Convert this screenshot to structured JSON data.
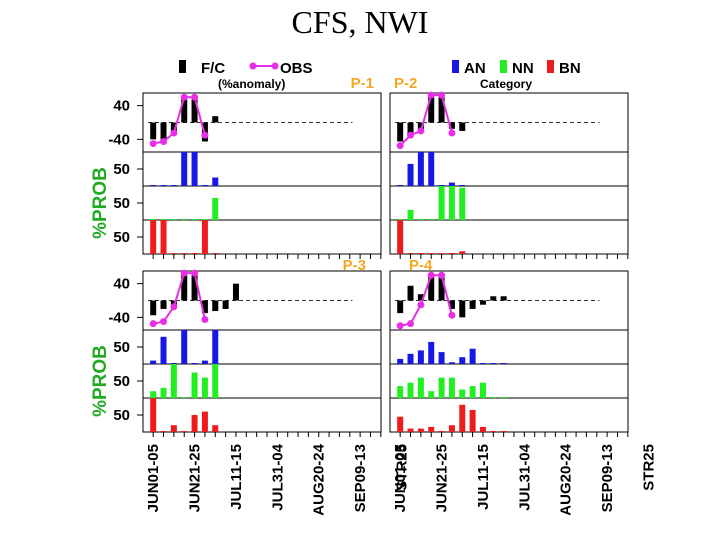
{
  "title": "CFS, NWI",
  "legend": {
    "fc_label": "F/C",
    "obs_label": "OBS",
    "anomaly_note": "(%anomaly)",
    "an_label": "AN",
    "nn_label": "NN",
    "bn_label": "BN",
    "category_note": "Category"
  },
  "colors": {
    "fc": "#000000",
    "obs": "#e62ee6",
    "an": "#1717e6",
    "nn": "#22ee22",
    "bn": "#ee1c1c",
    "panel_label": "#f5a623",
    "prob_axis": "#22aa22"
  },
  "chart_data": {
    "type": "bar",
    "x_tick_labels": [
      "JUN01-05",
      "JUN21-25",
      "JUL11-15",
      "JUL31-04",
      "AUG20-24",
      "SEP09-13",
      "STR25"
    ],
    "y_axis_label": "%PROB",
    "anomaly_ticks": [
      "40",
      "-40"
    ],
    "prob_tick": "50",
    "anomaly_ylim": [
      -70,
      70
    ],
    "prob_ylim": [
      0,
      100
    ],
    "panels": [
      {
        "name": "P-1",
        "fc": [
          -40,
          -50,
          -25,
          55,
          55,
          -45,
          15,
          null,
          null,
          null,
          null,
          null,
          null,
          null,
          null,
          null,
          null,
          null,
          null,
          null,
          null,
          null,
          null
        ],
        "obs": [
          -50,
          -45,
          -25,
          60,
          60,
          -30,
          null,
          null,
          null,
          null,
          null,
          null,
          null,
          null,
          null,
          null,
          null,
          null,
          null,
          null,
          null,
          null,
          null
        ],
        "an": [
          0,
          0,
          0,
          100,
          100,
          0,
          25,
          null,
          null,
          null,
          null,
          null,
          null,
          null,
          null,
          null,
          null,
          null,
          null,
          null,
          null,
          null,
          null
        ],
        "nn": [
          0,
          0,
          0,
          0,
          0,
          0,
          65,
          null,
          null,
          null,
          null,
          null,
          null,
          null,
          null,
          null,
          null,
          null,
          null,
          null,
          null,
          null,
          null
        ],
        "bn": [
          100,
          100,
          0,
          0,
          0,
          100,
          0,
          null,
          null,
          null,
          null,
          null,
          null,
          null,
          null,
          null,
          null,
          null,
          null,
          null,
          null,
          null,
          null
        ]
      },
      {
        "name": "P-2",
        "fc": [
          -45,
          -35,
          -20,
          60,
          60,
          -15,
          -20,
          null,
          null,
          null,
          null,
          null,
          null,
          null,
          null,
          null,
          null,
          null,
          null,
          null,
          null,
          null,
          null
        ],
        "obs": [
          -55,
          -30,
          -20,
          65,
          65,
          -25,
          null,
          null,
          null,
          null,
          null,
          null,
          null,
          null,
          null,
          null,
          null,
          null,
          null,
          null,
          null,
          null,
          null
        ],
        "an": [
          0,
          65,
          100,
          100,
          0,
          10,
          0,
          null,
          null,
          null,
          null,
          null,
          null,
          null,
          null,
          null,
          null,
          null,
          null,
          null,
          null,
          null,
          null
        ],
        "nn": [
          0,
          30,
          0,
          0,
          100,
          100,
          95,
          null,
          null,
          null,
          null,
          null,
          null,
          null,
          null,
          null,
          null,
          null,
          null,
          null,
          null,
          null,
          null
        ],
        "bn": [
          100,
          0,
          0,
          0,
          0,
          0,
          8,
          null,
          null,
          null,
          null,
          null,
          null,
          null,
          null,
          null,
          null,
          null,
          null,
          null,
          null,
          null,
          null
        ]
      },
      {
        "name": "P-3",
        "fc": [
          -35,
          -20,
          -10,
          60,
          60,
          -30,
          -25,
          -20,
          40,
          null,
          null,
          null,
          null,
          null,
          null,
          null,
          null,
          null,
          null,
          null,
          null,
          null,
          null
        ],
        "obs": [
          -55,
          -50,
          -15,
          65,
          65,
          -45,
          null,
          null,
          null,
          null,
          null,
          null,
          null,
          null,
          null,
          null,
          null,
          null,
          null,
          null,
          null,
          null,
          null
        ],
        "an": [
          10,
          80,
          0,
          100,
          0,
          10,
          100,
          null,
          null,
          null,
          null,
          null,
          null,
          null,
          null,
          null,
          null,
          null,
          null,
          null,
          null,
          null,
          null
        ],
        "nn": [
          20,
          30,
          100,
          0,
          75,
          60,
          100,
          null,
          null,
          null,
          null,
          null,
          null,
          null,
          null,
          null,
          null,
          null,
          null,
          null,
          null,
          null,
          null
        ],
        "bn": [
          100,
          0,
          20,
          0,
          50,
          60,
          20,
          null,
          null,
          null,
          null,
          null,
          null,
          null,
          null,
          null,
          null,
          null,
          null,
          null,
          null,
          null,
          null
        ]
      },
      {
        "name": "P-4",
        "fc": [
          -30,
          35,
          15,
          60,
          60,
          -20,
          -40,
          -20,
          -10,
          10,
          10,
          null,
          null,
          null,
          null,
          null,
          null,
          null,
          null,
          null,
          null,
          null,
          null
        ],
        "obs": [
          -60,
          -55,
          -10,
          60,
          60,
          -35,
          null,
          null,
          null,
          null,
          null,
          null,
          null,
          null,
          null,
          null,
          null,
          null,
          null,
          null,
          null,
          null,
          null
        ],
        "an": [
          15,
          30,
          40,
          65,
          35,
          5,
          20,
          45,
          0,
          0,
          0,
          null,
          null,
          null,
          null,
          null,
          null,
          null,
          null,
          null,
          null,
          null,
          null
        ],
        "nn": [
          35,
          45,
          60,
          20,
          60,
          60,
          25,
          35,
          45,
          0,
          0,
          null,
          null,
          null,
          null,
          null,
          null,
          null,
          null,
          null,
          null,
          null,
          null
        ],
        "bn": [
          45,
          10,
          10,
          15,
          0,
          20,
          80,
          65,
          15,
          0,
          0,
          null,
          null,
          null,
          null,
          null,
          null,
          null,
          null,
          null,
          null,
          null,
          null
        ]
      }
    ]
  }
}
